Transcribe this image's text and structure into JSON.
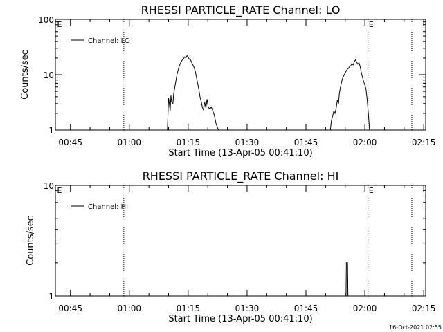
{
  "footer_timestamp": "16-Oct-2021 02:55",
  "chart_data": [
    {
      "type": "line",
      "title": "RHESSI PARTICLE_RATE Channel: LO",
      "xlabel": "Start Time (13-Apr-05 00:41:10)",
      "ylabel": "Counts/sec",
      "y_scale": "log",
      "ylim": [
        1,
        100
      ],
      "y_ticks": [
        1,
        10,
        100
      ],
      "y_tick_labels": [
        "1",
        "10",
        "100"
      ],
      "x_unit": "minutes after 00:00 UT",
      "xlim": [
        41.17,
        135.5
      ],
      "x_ticks": [
        45,
        60,
        75,
        90,
        105,
        120,
        135
      ],
      "x_tick_labels": [
        "00:45",
        "01:00",
        "01:15",
        "01:30",
        "01:45",
        "02:00",
        "02:15"
      ],
      "event_lines_x": [
        58.6,
        120.8,
        136.5
      ],
      "event_markers": [
        {
          "x": 41.6,
          "label": "E"
        },
        {
          "x": 121.0,
          "label": "E"
        }
      ],
      "legend": {
        "position": "top-left",
        "entries": [
          "Channel: LO"
        ]
      },
      "series": [
        {
          "name": "Channel: LO",
          "x": [
            69.7,
            70.0,
            70.2,
            70.4,
            70.6,
            70.8,
            71.1,
            71.3,
            71.6,
            71.9,
            72.2,
            72.6,
            73.0,
            73.4,
            73.8,
            74.1,
            74.4,
            74.7,
            75.0,
            75.3,
            75.6,
            75.9,
            76.2,
            76.5,
            76.8,
            77.1,
            77.4,
            77.7,
            78.0,
            78.3,
            78.6,
            78.9,
            79.2,
            79.5,
            79.8,
            80.1,
            80.5,
            80.9,
            81.3,
            81.7,
            82.1,
            82.7
          ],
          "values": [
            1.0,
            3.8,
            3.0,
            2.2,
            4.2,
            3.2,
            3.0,
            4.5,
            6.0,
            8.0,
            10.5,
            13.5,
            16.0,
            18.0,
            19.5,
            21.0,
            20.0,
            22.0,
            20.5,
            19.0,
            18.5,
            16.5,
            15.0,
            13.5,
            11.5,
            9.0,
            7.0,
            5.5,
            4.0,
            3.3,
            2.6,
            2.3,
            3.2,
            2.5,
            3.6,
            2.6,
            2.4,
            2.6,
            2.2,
            1.8,
            1.3,
            1.0
          ]
        },
        {
          "name": "Channel: LO",
          "x": [
            111.2,
            111.5,
            111.8,
            112.1,
            112.4,
            112.7,
            113.0,
            113.3,
            113.5,
            113.7,
            114.0,
            114.3,
            114.6,
            114.9,
            115.2,
            115.5,
            115.8,
            116.1,
            116.4,
            116.7,
            117.0,
            117.3,
            117.6,
            117.9,
            118.2,
            118.5,
            118.8,
            119.1,
            119.4,
            119.7,
            120.0,
            120.3,
            120.6,
            120.9,
            121.2
          ],
          "values": [
            1.0,
            1.5,
            1.8,
            2.2,
            2.0,
            2.5,
            3.5,
            3.0,
            4.5,
            5.5,
            7.0,
            8.5,
            9.5,
            10.5,
            11.5,
            12.5,
            13.0,
            14.0,
            14.5,
            16.0,
            15.0,
            17.0,
            18.5,
            17.0,
            15.5,
            16.5,
            14.0,
            11.0,
            9.0,
            7.5,
            6.5,
            5.5,
            3.5,
            2.0,
            1.0
          ]
        }
      ]
    },
    {
      "type": "line",
      "title": "RHESSI PARTICLE_RATE Channel: HI",
      "xlabel": "Start Time (13-Apr-05 00:41:10)",
      "ylabel": "Counts/sec",
      "y_scale": "log",
      "ylim": [
        1,
        10
      ],
      "y_ticks": [
        1,
        10
      ],
      "y_tick_labels": [
        "1",
        "10"
      ],
      "x_unit": "minutes after 00:00 UT",
      "xlim": [
        41.17,
        135.5
      ],
      "x_ticks": [
        45,
        60,
        75,
        90,
        105,
        120,
        135
      ],
      "x_tick_labels": [
        "00:45",
        "01:00",
        "01:15",
        "01:30",
        "01:45",
        "02:00",
        "02:15"
      ],
      "event_lines_x": [
        58.6,
        120.8,
        136.5
      ],
      "event_markers": [
        {
          "x": 41.6,
          "label": "E"
        },
        {
          "x": 121.0,
          "label": "E"
        }
      ],
      "legend": {
        "position": "top-left",
        "entries": [
          "Channel: HI"
        ]
      },
      "series": [
        {
          "name": "Channel: HI",
          "x": [
            115.0,
            115.2,
            115.3,
            115.6,
            115.7,
            116.0
          ],
          "values": [
            1.0,
            1.0,
            2.0,
            2.0,
            1.0,
            1.0
          ]
        }
      ]
    }
  ]
}
